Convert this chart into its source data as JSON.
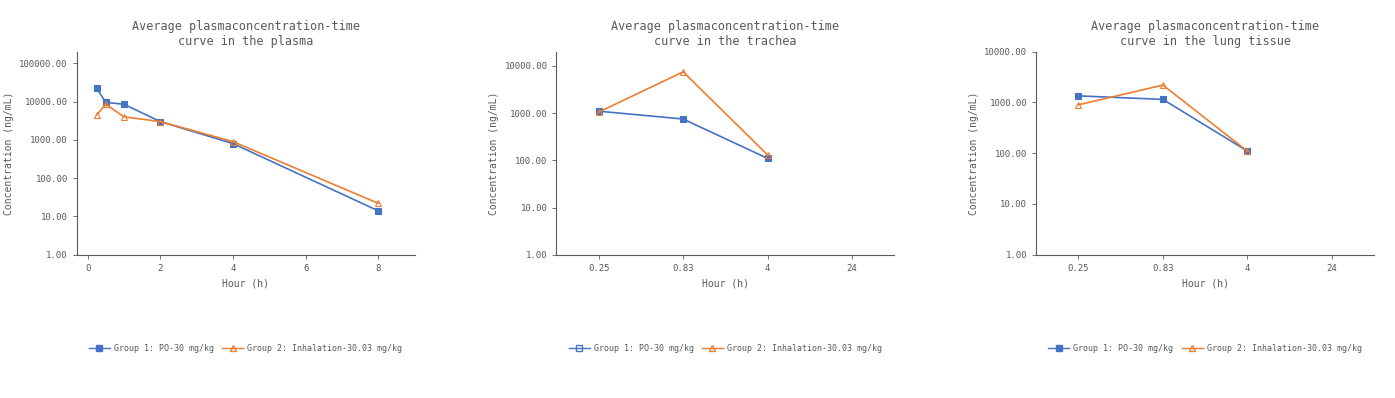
{
  "chart1": {
    "title": "Average plasmaconcentration-time\ncurve in the plasma",
    "xlabel": "Hour (h)",
    "ylabel": "Concentration (ng/mL)",
    "xlim": [
      -0.3,
      9
    ],
    "ylim": [
      1,
      200000
    ],
    "xticks": [
      0,
      2,
      4,
      6,
      8
    ],
    "ytick_labels": [
      "1.00",
      "10.00",
      "100.00",
      "1000.00",
      "10000.00",
      "100000.00"
    ],
    "ytick_vals": [
      1,
      10,
      100,
      1000,
      10000,
      100000
    ],
    "group1": {
      "x": [
        0.25,
        0.5,
        1,
        2,
        4,
        8
      ],
      "y": [
        22000,
        9500,
        8500,
        3000,
        800,
        14
      ],
      "color": "#4472C4",
      "marker": "s",
      "label": "Group 1: PO-30 mg/kg"
    },
    "group2": {
      "x": [
        0.25,
        0.5,
        1,
        2,
        4,
        8
      ],
      "y": [
        4500,
        8500,
        4000,
        3000,
        900,
        22
      ],
      "color": "#ED7D31",
      "marker": "^",
      "label": "Group 2: Inhalation-30.03 mg/kg"
    }
  },
  "chart2": {
    "title": "Average plasmaconcentration-time\ncurve in the trachea",
    "xlabel": "Hour (h)",
    "ylabel": "Concentration (ng/mL)",
    "ylim": [
      1,
      20000
    ],
    "xtick_positions": [
      1,
      2,
      3,
      4
    ],
    "xtick_labels": [
      "0.25",
      "0.83",
      "4",
      "24"
    ],
    "ytick_labels": [
      "1.00",
      "10.00",
      "100.00",
      "1000.00",
      "10000.00"
    ],
    "ytick_vals": [
      1,
      10,
      100,
      1000,
      10000
    ],
    "group1": {
      "x": [
        1,
        2,
        3
      ],
      "y": [
        1100,
        750,
        110
      ],
      "color": "#4472C4",
      "marker": "s",
      "label": "Group 1: PO-30 mg/kg"
    },
    "group2": {
      "x": [
        1,
        2,
        3
      ],
      "y": [
        1050,
        7500,
        130
      ],
      "color": "#ED7D31",
      "marker": "^",
      "label": "Group 2: Inhalation-30.03 mg/kg"
    }
  },
  "chart3": {
    "title": "Average plasmaconcentration-time\ncurve in the lung tissue",
    "xlabel": "Hour (h)",
    "ylabel": "Concentration (ng/mL)",
    "ylim": [
      1,
      10000
    ],
    "xtick_positions": [
      1,
      2,
      3,
      4
    ],
    "xtick_labels": [
      "0.25",
      "0.83",
      "4",
      "24"
    ],
    "ytick_labels": [
      "1.00",
      "10.00",
      "100.00",
      "1000.00",
      "10000.00"
    ],
    "ytick_vals": [
      1,
      10,
      100,
      1000,
      10000
    ],
    "group1": {
      "x": [
        1,
        2,
        3
      ],
      "y": [
        1350,
        1150,
        110
      ],
      "color": "#4472C4",
      "marker": "s",
      "label": "Group 1: PO-30 mg/kg"
    },
    "group2": {
      "x": [
        1,
        2,
        3
      ],
      "y": [
        900,
        2200,
        110
      ],
      "color": "#ED7D31",
      "marker": "^",
      "label": "Group 2: Inhalation-30.03 mg/kg"
    }
  },
  "bg_color": "#ffffff",
  "plot_bg_color": "#ffffff",
  "text_color": "#595959",
  "spine_color": "#595959",
  "title_fontsize": 8.5,
  "label_fontsize": 7,
  "tick_fontsize": 6.5,
  "legend_fontsize": 6,
  "linewidth": 1.2,
  "markersize": 4
}
